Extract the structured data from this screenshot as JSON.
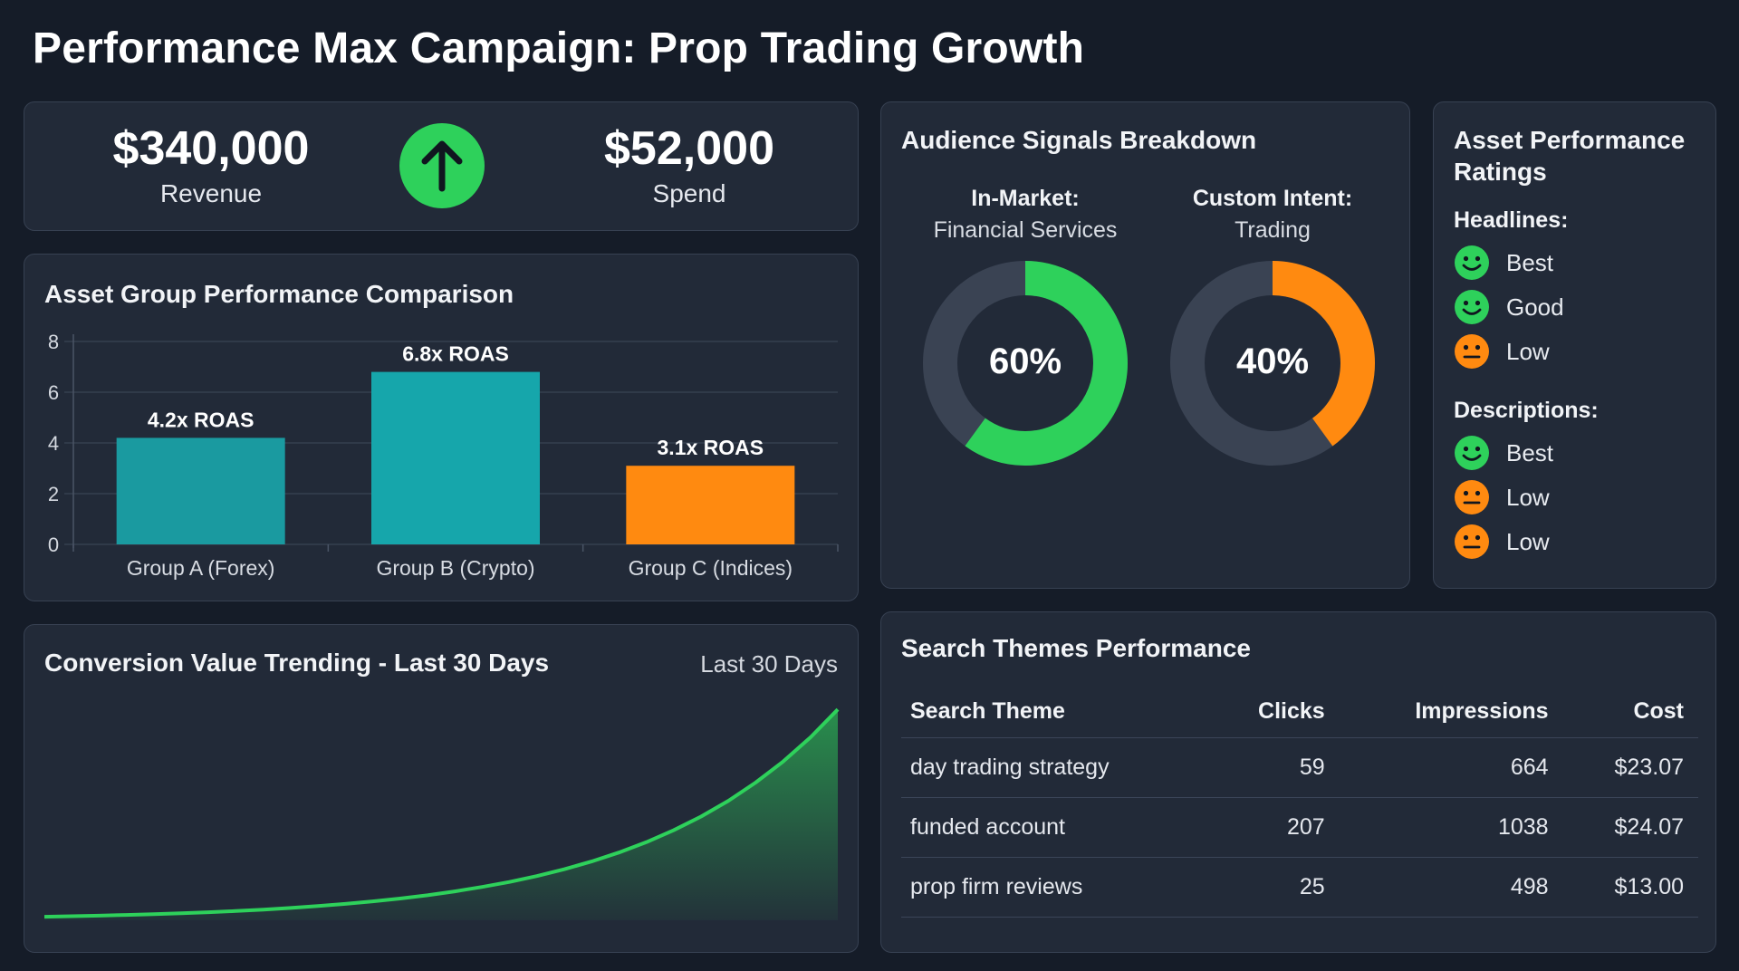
{
  "title": "Performance Max Campaign: Prop Trading Growth",
  "kpi": {
    "revenue_value": "$340,000",
    "revenue_label": "Revenue",
    "spend_value": "$52,000",
    "spend_label": "Spend",
    "trend_icon": "arrow-up-icon",
    "trend_color": "#2ed15b"
  },
  "asset_group": {
    "title": "Asset Group Performance Comparison",
    "chart_data": {
      "type": "bar",
      "categories": [
        "Group A (Forex)",
        "Group B (Crypto)",
        "Group C (Indices)"
      ],
      "values": [
        4.2,
        6.8,
        3.1
      ],
      "data_labels": [
        "4.2x ROAS",
        "6.8x ROAS",
        "3.1x ROAS"
      ],
      "colors": [
        "#1a9aa0",
        "#16a6ab",
        "#ff8a10"
      ],
      "ylim": [
        0,
        8
      ],
      "yticks": [
        "0",
        "2",
        "4",
        "6",
        "8"
      ],
      "grid": true
    }
  },
  "trend": {
    "title": "Conversion Value Trending - Last 30 Days",
    "subtitle": "Last 30 Days",
    "chart_data": {
      "type": "area",
      "color": "#2ed15b",
      "values": [
        2,
        2.3,
        2.6,
        3,
        3.4,
        3.9,
        4.5,
        5.2,
        6,
        6.9,
        8,
        9.2,
        10.6,
        12.2,
        14,
        16.2,
        18.7,
        21.5,
        24.8,
        28.6,
        33,
        38,
        43.8,
        50.5,
        58.2,
        67,
        77.3,
        89,
        102.6,
        118.3
      ],
      "ylim": [
        0,
        125
      ],
      "grid": false
    }
  },
  "audience": {
    "title": "Audience Signals Breakdown",
    "chart_data": {
      "type": "pie",
      "segments": [
        {
          "heading": "In-Market:",
          "subheading": "Financial Services",
          "value": 60,
          "label": "60%",
          "color": "#2ed15b"
        },
        {
          "heading": "Custom Intent:",
          "subheading": "Trading",
          "value": 40,
          "label": "40%",
          "color": "#ff8a10"
        }
      ],
      "track_color": "#3a4353"
    }
  },
  "ratings": {
    "title": "Asset Performance Ratings",
    "headlines_label": "Headlines:",
    "headlines": [
      {
        "label": "Best",
        "icon": "smile-icon",
        "color": "#2ed15b"
      },
      {
        "label": "Good",
        "icon": "smile-icon",
        "color": "#2ed15b"
      },
      {
        "label": "Low",
        "icon": "neutral-face-icon",
        "color": "#ff8a10"
      }
    ],
    "descriptions_label": "Descriptions:",
    "descriptions": [
      {
        "label": "Best",
        "icon": "smile-icon",
        "color": "#2ed15b"
      },
      {
        "label": "Low",
        "icon": "neutral-face-icon",
        "color": "#ff8a10"
      },
      {
        "label": "Low",
        "icon": "neutral-face-icon",
        "color": "#ff8a10"
      }
    ]
  },
  "search": {
    "title": "Search Themes Performance",
    "headers": [
      "Search Theme",
      "Clicks",
      "Impressions",
      "Cost"
    ],
    "rows": [
      [
        "day trading strategy",
        "59",
        "664",
        "$23.07"
      ],
      [
        "funded account",
        "207",
        "1038",
        "$24.07"
      ],
      [
        "prop firm reviews",
        "25",
        "498",
        "$13.00"
      ]
    ]
  }
}
